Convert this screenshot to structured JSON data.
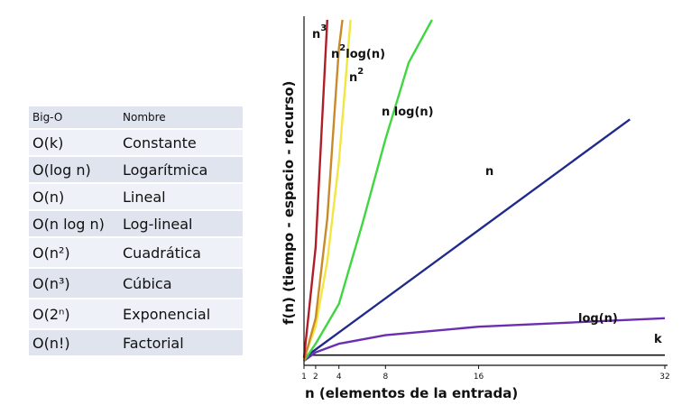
{
  "table": {
    "header": {
      "col1": "Big-O",
      "col2": "Nombre"
    },
    "rows": [
      {
        "notation": "O(k)",
        "name": "Constante"
      },
      {
        "notation": "O(log n)",
        "name": "Logarítmica"
      },
      {
        "notation": "O(n)",
        "name": "Lineal"
      },
      {
        "notation": "O(n log n)",
        "name": "Log-lineal"
      },
      {
        "notation": "O(n²)",
        "name": "Cuadrática"
      },
      {
        "notation": "O(n³)",
        "name": "Cúbica"
      },
      {
        "notation": "O(2ⁿ)",
        "name": "Exponencial"
      },
      {
        "notation": "O(n!)",
        "name": "Factorial"
      }
    ]
  },
  "chart_data": {
    "type": "line",
    "xlabel": "n (elementos de la entrada)",
    "ylabel": "f(n) (tiempo - espacio - recurso)",
    "xlim": [
      1,
      32
    ],
    "ylim": [
      0,
      120
    ],
    "xticks": [
      1,
      2,
      4,
      8,
      16,
      32
    ],
    "grid": false,
    "legend": "none",
    "series": [
      {
        "name": "k",
        "color": "#111111",
        "points": [
          [
            1,
            2
          ],
          [
            32,
            2
          ]
        ]
      },
      {
        "name": "log(n)",
        "color": "#6a2fb0",
        "points": [
          [
            1,
            0
          ],
          [
            2,
            3
          ],
          [
            4,
            6
          ],
          [
            8,
            9
          ],
          [
            16,
            12
          ],
          [
            32,
            15
          ]
        ]
      },
      {
        "name": "n",
        "color": "#1f2a8c",
        "points": [
          [
            1,
            1
          ],
          [
            29,
            85
          ]
        ]
      },
      {
        "name": "n log(n)",
        "color": "#3fd63f",
        "points": [
          [
            1,
            0
          ],
          [
            2,
            6
          ],
          [
            4,
            20
          ],
          [
            6,
            48
          ],
          [
            8,
            78
          ],
          [
            10,
            105
          ],
          [
            12,
            120
          ]
        ]
      },
      {
        "name": "n2",
        "color": "#f2e640",
        "points": [
          [
            1,
            1
          ],
          [
            2,
            12
          ],
          [
            3,
            35
          ],
          [
            4,
            70
          ],
          [
            5,
            120
          ]
        ]
      },
      {
        "name": "n2log(n)",
        "color": "#c98a2a",
        "points": [
          [
            1,
            0
          ],
          [
            2,
            15
          ],
          [
            3,
            50
          ],
          [
            4,
            110
          ],
          [
            4.3,
            120
          ]
        ]
      },
      {
        "name": "n3",
        "color": "#b01e28",
        "points": [
          [
            1,
            1
          ],
          [
            2,
            40
          ],
          [
            3,
            120
          ]
        ]
      }
    ],
    "labels": {
      "n3": {
        "base": "n",
        "sup": "3"
      },
      "n2log": {
        "base": "n",
        "sup": "2",
        "rest": "log(n)"
      },
      "n2": {
        "base": "n",
        "sup": "2"
      },
      "nlogn": "n log(n)",
      "n": "n",
      "logn": "log(n)",
      "k": "k"
    }
  }
}
